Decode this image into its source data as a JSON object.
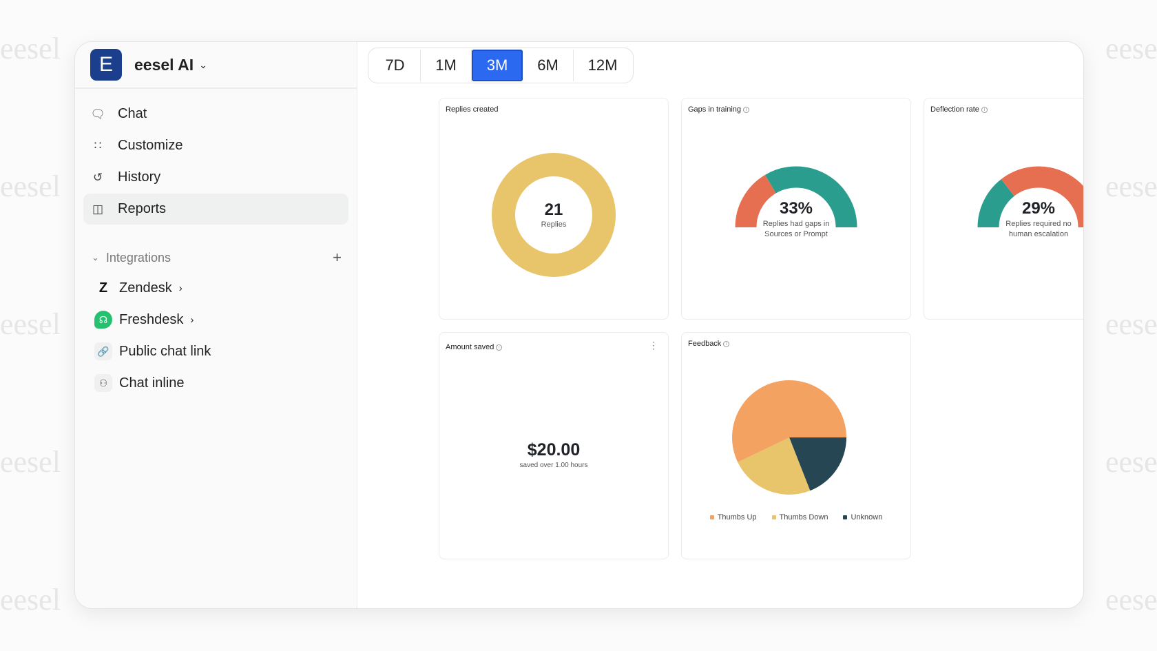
{
  "watermark": "eesel",
  "brand": {
    "logo_letter": "E",
    "name": "eesel AI"
  },
  "nav": [
    {
      "label": "Chat",
      "icon": "chat-bubble-icon"
    },
    {
      "label": "Customize",
      "icon": "customize-grid-icon"
    },
    {
      "label": "History",
      "icon": "history-icon"
    },
    {
      "label": "Reports",
      "icon": "reports-chart-icon",
      "active": true
    }
  ],
  "integrations": {
    "label": "Integrations",
    "items": [
      {
        "label": "Zendesk",
        "icon": "zendesk-logo"
      },
      {
        "label": "Freshdesk",
        "icon": "freshdesk-logo"
      },
      {
        "label": "Public chat link",
        "icon": "link-icon"
      },
      {
        "label": "Chat inline",
        "icon": "chat-inline-icon"
      }
    ]
  },
  "tabs": [
    {
      "label": "7D"
    },
    {
      "label": "1M"
    },
    {
      "label": "3M",
      "active": true
    },
    {
      "label": "6M"
    },
    {
      "label": "12M"
    }
  ],
  "colors": {
    "accent": "#2b6af0",
    "yellow": "#e8c46a",
    "teal": "#2a9d8f",
    "red": "#e76f51",
    "orange": "#f4a261",
    "navy": "#264653"
  },
  "cards": {
    "replies": {
      "title": "Replies created",
      "value": "21",
      "sub": "Replies"
    },
    "gaps": {
      "title": "Gaps in training",
      "value": "33%",
      "percent": 33,
      "sub1": "Replies had gaps in",
      "sub2": "Sources or Prompt"
    },
    "deflection": {
      "title": "Deflection rate",
      "value": "29%",
      "percent": 29,
      "sub1": "Replies required no",
      "sub2": "human escalation"
    },
    "amount": {
      "title": "Amount saved",
      "value": "$20.00",
      "sub": "saved over 1.00 hours"
    },
    "feedback": {
      "title": "Feedback"
    }
  },
  "chart_data": {
    "type": "pie",
    "title": "Feedback",
    "series": [
      {
        "name": "Thumbs Up",
        "value": 12,
        "color": "#f4a261"
      },
      {
        "name": "Thumbs Down",
        "value": 5,
        "color": "#e8c46a"
      },
      {
        "name": "Unknown",
        "value": 4,
        "color": "#264653"
      }
    ],
    "legend": "bottom"
  }
}
